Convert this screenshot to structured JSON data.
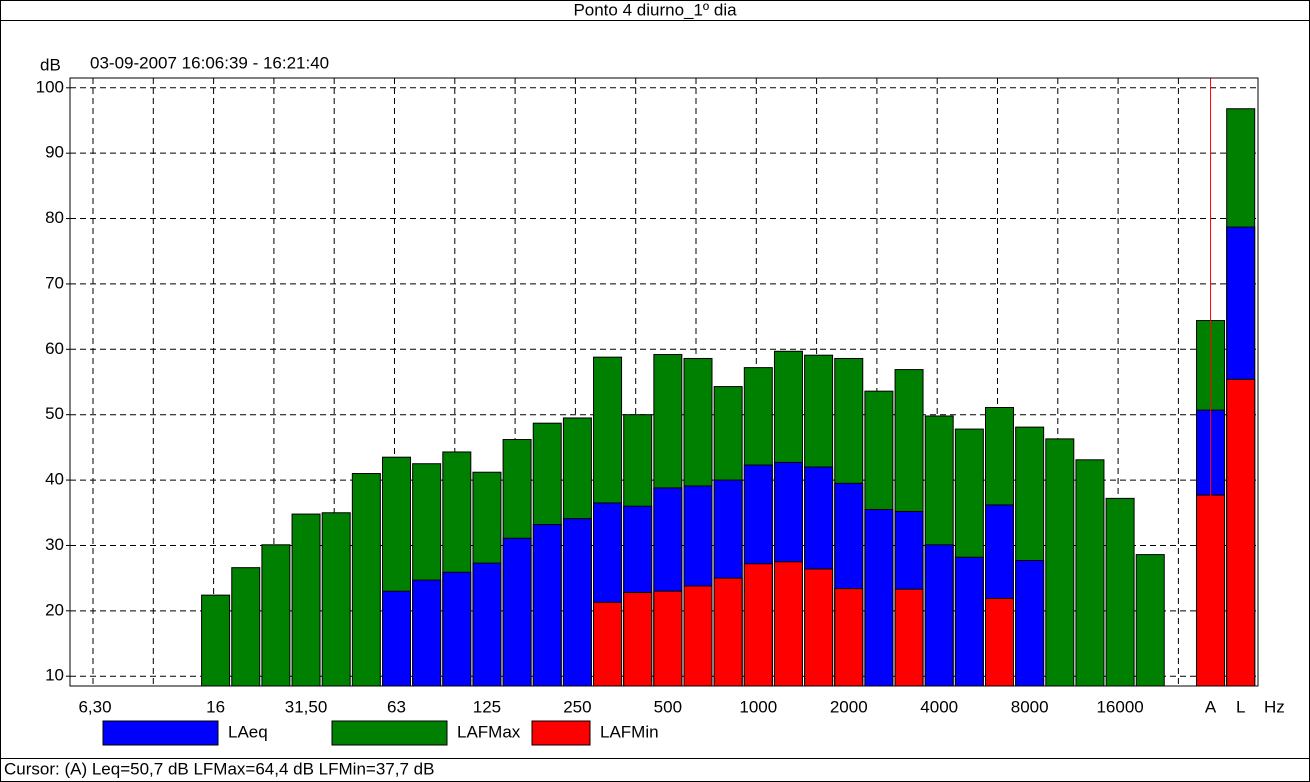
{
  "chart_data": {
    "type": "bar",
    "title": "Ponto 4 diurno_1º dia",
    "subtitle": "03-09-2007 16:06:39 - 16:21:40",
    "y_label": "dB",
    "x_label": "Hz",
    "footer": "Cursor: (A)  Leq=50,7 dB  LFMax=64,4 dB  LFMin=37,7 dB",
    "categories": [
      "6,30",
      null,
      null,
      null,
      "16",
      null,
      null,
      "31,50",
      null,
      null,
      "63",
      null,
      null,
      "125",
      null,
      null,
      "250",
      null,
      null,
      "500",
      null,
      null,
      "1000",
      null,
      null,
      "2000",
      null,
      null,
      "4000",
      null,
      null,
      "8000",
      null,
      null,
      "16000",
      null,
      null,
      "A",
      "L"
    ],
    "series": [
      {
        "name": "LAeq",
        "color": "#0000ff",
        "values": [
          null,
          null,
          null,
          null,
          null,
          null,
          null,
          null,
          null,
          null,
          23,
          24.7,
          25.9,
          27.3,
          31.1,
          33.2,
          34.1,
          36.5,
          36,
          38.8,
          39.1,
          40,
          42.3,
          42.7,
          42,
          39.5,
          35.5,
          35.2,
          30.1,
          28.2,
          36.2,
          27.7,
          null,
          null,
          null,
          null,
          null,
          50.7,
          78.7
        ]
      },
      {
        "name": "LAFMax",
        "color": "#008000",
        "values": [
          null,
          null,
          null,
          null,
          22.4,
          26.6,
          30.1,
          34.8,
          35,
          41,
          43.5,
          42.5,
          44.3,
          41.2,
          46.2,
          48.7,
          49.5,
          58.8,
          50,
          59.2,
          58.6,
          54.3,
          57.2,
          59.7,
          59.1,
          58.6,
          53.6,
          56.9,
          49.8,
          47.8,
          51.1,
          48.1,
          46.3,
          43.1,
          37.2,
          28.6,
          null,
          64.4,
          96.8
        ]
      },
      {
        "name": "LAFMin",
        "color": "#ff0000",
        "values": [
          null,
          null,
          null,
          null,
          null,
          null,
          null,
          null,
          null,
          null,
          null,
          null,
          null,
          null,
          null,
          null,
          null,
          21.3,
          22.8,
          23,
          23.8,
          25,
          27.2,
          27.5,
          26.4,
          23.4,
          null,
          23.3,
          null,
          null,
          21.9,
          null,
          null,
          null,
          null,
          null,
          null,
          37.7,
          55.4
        ]
      }
    ],
    "ylim": [
      8.5,
      101.5
    ],
    "yticks": [
      10,
      20,
      30,
      40,
      50,
      60,
      70,
      80,
      90,
      100
    ],
    "grid": true
  }
}
